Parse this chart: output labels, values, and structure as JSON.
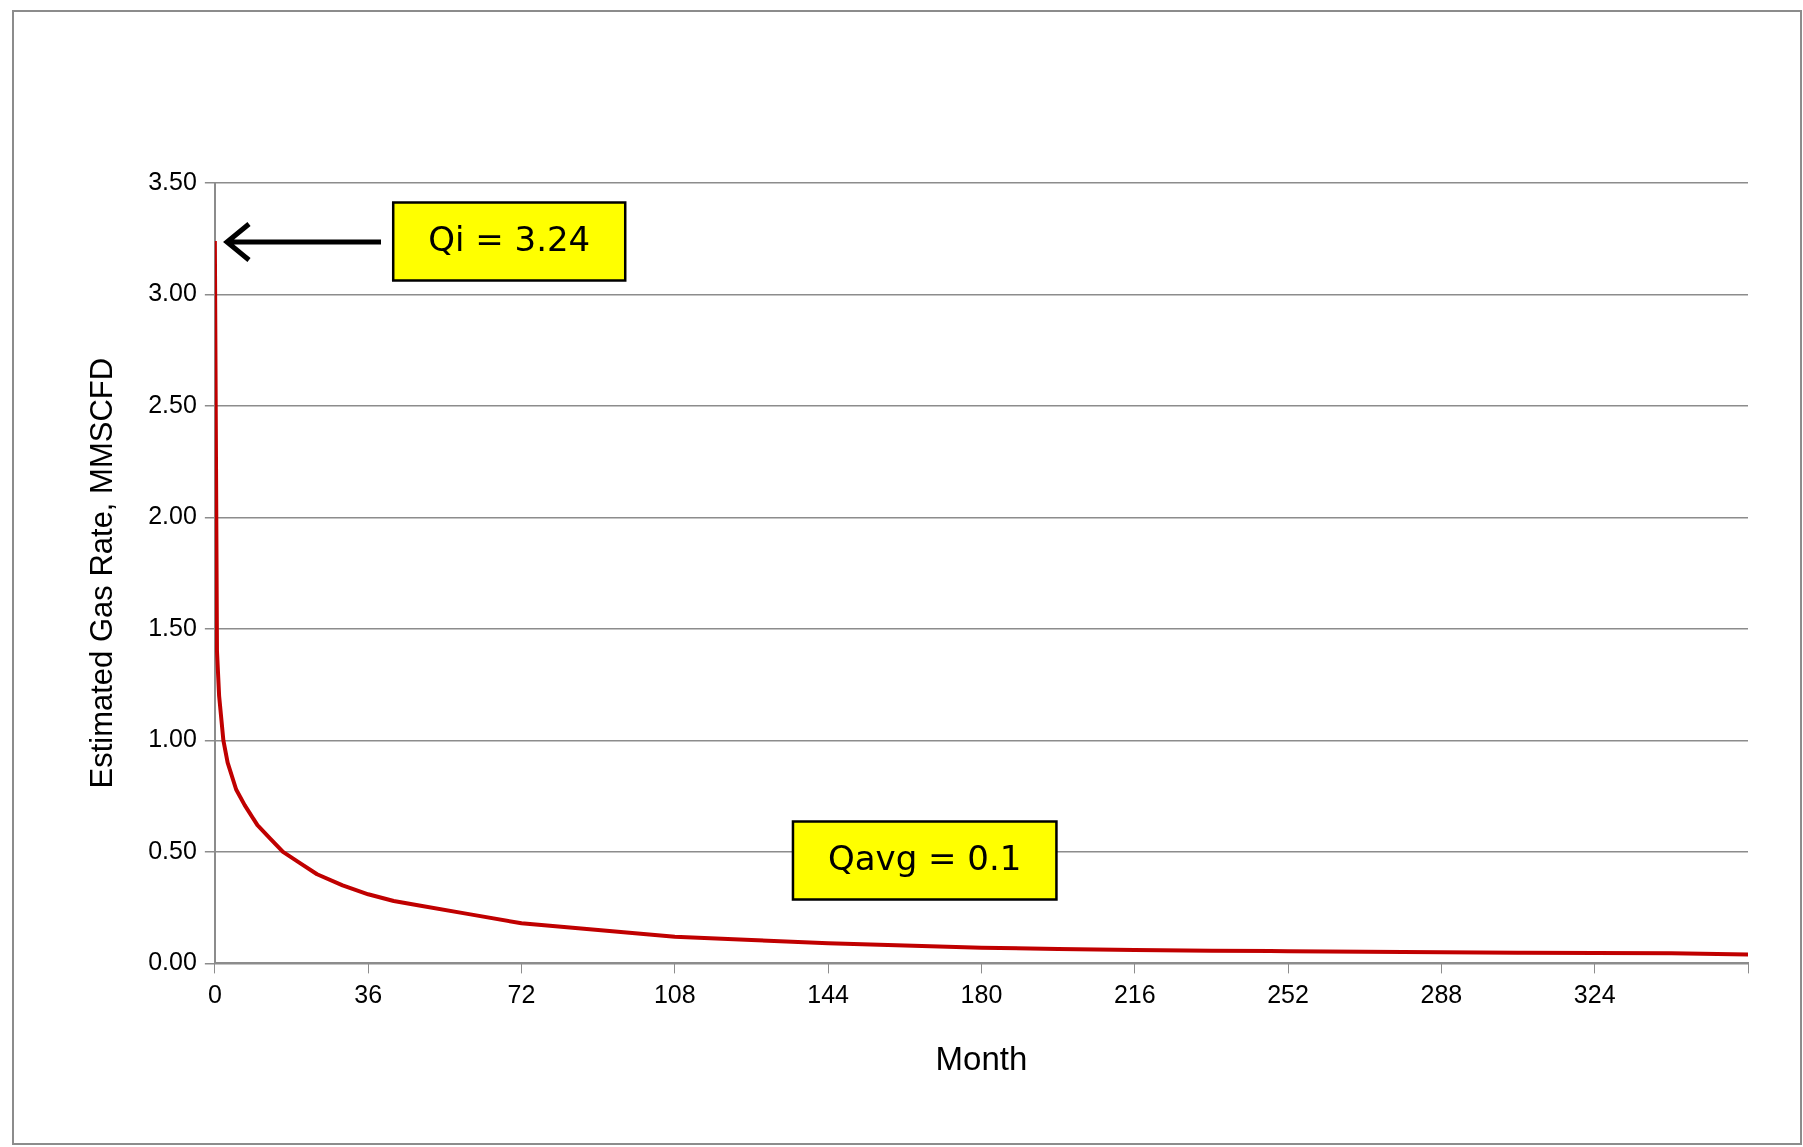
{
  "chart_data": {
    "type": "line",
    "xlabel": "Month",
    "ylabel": "Estimated Gas Rate, MMSCFD",
    "x": [
      0,
      0.5,
      1,
      2,
      3,
      5,
      7,
      10,
      13,
      16,
      20,
      24,
      30,
      36,
      42,
      48,
      60,
      72,
      84,
      96,
      108,
      126,
      144,
      162,
      180,
      198,
      216,
      234,
      252,
      270,
      288,
      306,
      324,
      342,
      360
    ],
    "series": [
      {
        "color": "#c00000",
        "values": [
          3.24,
          1.4,
          1.2,
          1.0,
          0.9,
          0.78,
          0.71,
          0.62,
          0.56,
          0.5,
          0.45,
          0.4,
          0.35,
          0.31,
          0.28,
          0.26,
          0.22,
          0.18,
          0.16,
          0.14,
          0.12,
          0.105,
          0.09,
          0.08,
          0.07,
          0.065,
          0.06,
          0.057,
          0.055,
          0.052,
          0.05,
          0.048,
          0.047,
          0.045,
          0.04
        ]
      }
    ],
    "xlim": [
      0,
      360
    ],
    "xticks": [
      0,
      36,
      72,
      108,
      144,
      180,
      216,
      252,
      288,
      324,
      {
        "value": 360,
        "label": null
      }
    ],
    "ylim": [
      0,
      3.5
    ],
    "yticks": [
      {
        "value": 0,
        "label": "0.00"
      },
      {
        "value": 0.5,
        "label": "0.50"
      },
      {
        "value": 1,
        "label": "1.00"
      },
      {
        "value": 1.5,
        "label": "1.50"
      },
      {
        "value": 2,
        "label": "2.00"
      },
      {
        "value": 2.5,
        "label": "2.50"
      },
      {
        "value": 3,
        "label": "3.00"
      },
      {
        "value": 3.5,
        "label": "3.50"
      }
    ],
    "grid": "y",
    "legend": false,
    "marker": "none",
    "line_style": "solid",
    "annotations": [
      "Qi = 3.24",
      "Qavg = 0.1"
    ]
  }
}
